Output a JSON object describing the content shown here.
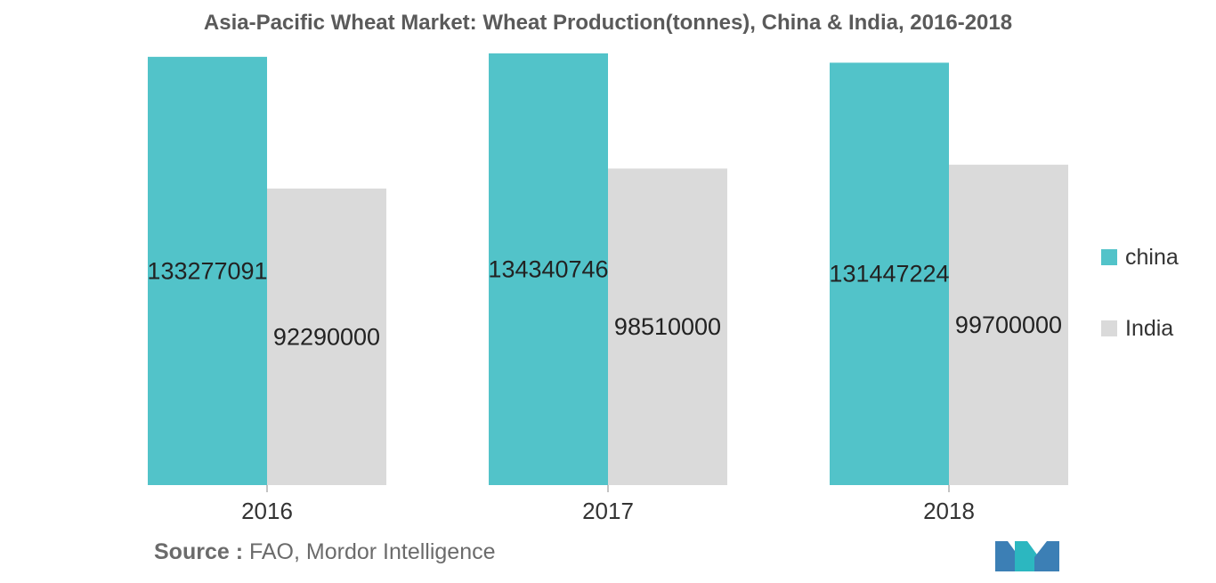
{
  "title": "Asia-Pacific Wheat Market: Wheat Production(tonnes), China & India, 2016-2018",
  "source": {
    "label": "Source :",
    "text": "FAO, Mordor Intelligence"
  },
  "logo": {
    "icon": "mordor-intelligence-logo-icon",
    "colors": [
      "#3c7fb5",
      "#2cb7c0"
    ]
  },
  "chart_data": {
    "type": "bar",
    "title": "Asia-Pacific Wheat Market: Wheat Production(tonnes), China & India, 2016-2018",
    "xlabel": "",
    "ylabel": "",
    "categories": [
      "2016",
      "2017",
      "2018"
    ],
    "series": [
      {
        "name": "china",
        "color": "#52c3c9",
        "values": [
          133277091,
          134340746,
          131447224
        ],
        "labels": [
          "133277091",
          "134340746",
          "131447224"
        ]
      },
      {
        "name": "India",
        "color": "#dadada",
        "values": [
          92290000,
          98510000,
          99700000
        ],
        "labels": [
          "92290000",
          "98510000",
          "99700000"
        ]
      }
    ],
    "ylim": [
      0,
      134340746
    ],
    "grid": false,
    "legend": "right"
  }
}
